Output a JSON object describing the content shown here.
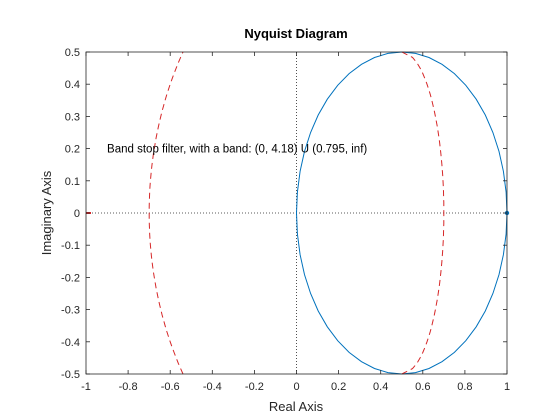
{
  "chart_data": {
    "type": "line",
    "title": "Nyquist Diagram",
    "xlabel": "Real Axis",
    "ylabel": "Imaginary Axis",
    "xlim": [
      -1,
      1
    ],
    "ylim": [
      -0.5,
      0.5
    ],
    "xticks": [
      -1,
      -0.8,
      -0.6,
      -0.4,
      -0.2,
      0,
      0.2,
      0.4,
      0.6,
      0.8,
      1
    ],
    "xtick_labels": [
      "-1",
      "-0.8",
      "-0.6",
      "-0.4",
      "-0.2",
      "0",
      "0.2",
      "0.4",
      "0.6",
      "0.8",
      "1"
    ],
    "yticks": [
      -0.5,
      -0.4,
      -0.3,
      -0.2,
      -0.1,
      0,
      0.1,
      0.2,
      0.3,
      0.4,
      0.5
    ],
    "ytick_labels": [
      "-0.5",
      "-0.4",
      "-0.3",
      "-0.2",
      "-0.1",
      "0",
      "0.1",
      "0.2",
      "0.3",
      "0.4",
      "0.5"
    ],
    "grid": false,
    "zero_lines": true,
    "annotation": {
      "text": "Band stop filter, with a band: (0, 4.18) U (0.795, inf)",
      "x": -0.9,
      "y": 0.2
    },
    "series": [
      {
        "style": "solid",
        "color": "#0072BD",
        "shape": "circle",
        "center": [
          0.5,
          0
        ],
        "radius": 0.5,
        "endpoint_marker": [
          1,
          0
        ]
      },
      {
        "style": "dashed",
        "color": "#D62728",
        "arcs": [
          {
            "description": "left arc",
            "center": [
              0.5,
              0
            ],
            "rx": 1.2,
            "ry": 1.0,
            "x_range": [
              -0.7,
              -0.48
            ]
          },
          {
            "description": "right arc",
            "center": [
              0.5,
              0
            ],
            "rx": 0.2,
            "ry": 0.5
          }
        ],
        "endpoint_marker": [
          -1,
          0
        ]
      }
    ]
  }
}
